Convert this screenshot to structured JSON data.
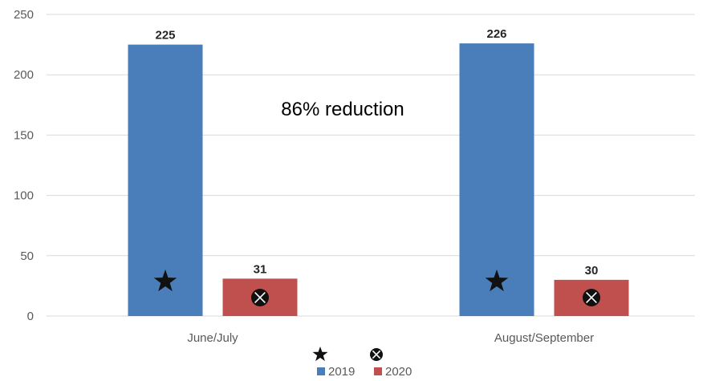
{
  "chart_data": {
    "type": "bar",
    "categories": [
      "June/July",
      "August/September"
    ],
    "series": [
      {
        "name": "2019",
        "values": [
          225,
          226
        ],
        "color": "#4a7ebb",
        "marker_icon": "star-icon"
      },
      {
        "name": "2020",
        "values": [
          31,
          30
        ],
        "color": "#c0504d",
        "marker_icon": "circle-x-icon"
      }
    ],
    "data_labels": [
      [
        "225",
        "226"
      ],
      [
        "31",
        "30"
      ]
    ],
    "y_ticks": [
      "0",
      "50",
      "100",
      "150",
      "200",
      "250"
    ],
    "ylim": [
      0,
      250
    ],
    "grid": true,
    "legend_position": "bottom",
    "annotation": "86% reduction"
  }
}
